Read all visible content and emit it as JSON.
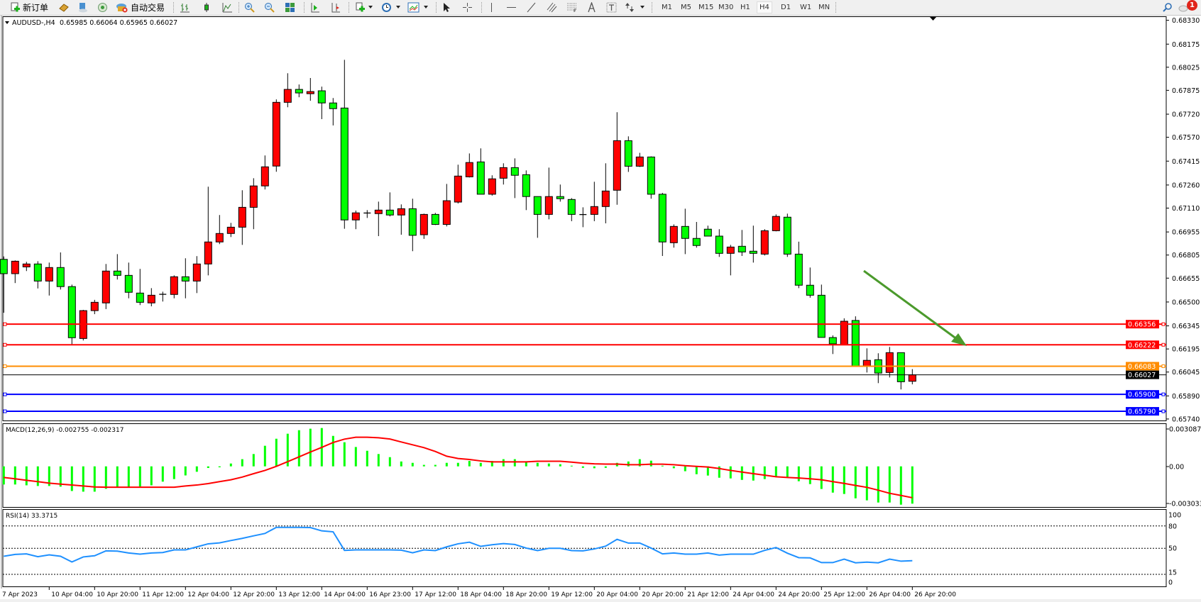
{
  "toolbar": {
    "new_order": "新订单",
    "auto_trading": "自动交易",
    "timeframes": [
      "M1",
      "M5",
      "M15",
      "M30",
      "H1",
      "H4",
      "D1",
      "W1",
      "MN"
    ],
    "active_timeframe": "H4",
    "notification_count": "1",
    "icons": [
      "new-order-icon",
      "market-watch-icon",
      "data-window-icon",
      "navigator-icon",
      "auto-trading-icon",
      "bar-chart-icon",
      "candlestick-icon",
      "line-chart-icon",
      "zoom-in-icon",
      "zoom-out-icon",
      "tile-windows-icon",
      "auto-scroll-icon",
      "chart-shift-icon",
      "indicators-icon",
      "periods-icon",
      "templates-icon",
      "cursor-icon",
      "crosshair-icon",
      "vertical-line-icon",
      "horizontal-line-icon",
      "trendline-icon",
      "equidistant-channel-icon",
      "fibonacci-icon",
      "text-icon",
      "text-label-icon",
      "arrows-icon",
      "search-icon",
      "notification-icon"
    ]
  },
  "chart": {
    "symbol": "AUDUSD-,H4",
    "ohlc": "0.65985 0.66064 0.65965 0.66027",
    "colors": {
      "bull": "#ff0000",
      "bear": "#00ff00",
      "arrow": "#4b9a2c"
    },
    "price_ticks": [
      "0.68330",
      "0.68175",
      "0.68025",
      "0.67875",
      "0.67720",
      "0.67570",
      "0.67415",
      "0.67260",
      "0.67110",
      "0.66955",
      "0.66805",
      "0.66655",
      "0.66500",
      "0.66345",
      "0.66195",
      "0.66045",
      "0.65890",
      "0.65740"
    ],
    "levels": [
      {
        "price": "0.66356",
        "color": "#ff0000"
      },
      {
        "price": "0.66222",
        "color": "#ff0000"
      },
      {
        "price": "0.66083",
        "color": "#ff8c00"
      },
      {
        "price": "0.66027",
        "color": "#000000"
      },
      {
        "price": "0.65900",
        "color": "#0000ff"
      },
      {
        "price": "0.65790",
        "color": "#0000ff"
      }
    ],
    "candles": [
      [
        0.66777,
        0.66796,
        0.6643,
        0.66684
      ],
      [
        0.66684,
        0.6677,
        0.66623,
        0.66765
      ],
      [
        0.66728,
        0.66761,
        0.66701,
        0.66747
      ],
      [
        0.66747,
        0.66765,
        0.66588,
        0.66636
      ],
      [
        0.66636,
        0.66756,
        0.66542,
        0.66724
      ],
      [
        0.66724,
        0.66822,
        0.66581,
        0.666
      ],
      [
        0.666,
        0.66613,
        0.66221,
        0.66268
      ],
      [
        0.66263,
        0.66449,
        0.6625,
        0.66444
      ],
      [
        0.66444,
        0.66514,
        0.66421,
        0.66498
      ],
      [
        0.66494,
        0.66747,
        0.66454,
        0.66701
      ],
      [
        0.66701,
        0.66811,
        0.66646,
        0.66673
      ],
      [
        0.66673,
        0.66756,
        0.66524,
        0.66563
      ],
      [
        0.66558,
        0.66715,
        0.6648,
        0.66498
      ],
      [
        0.66494,
        0.6659,
        0.66472,
        0.66544
      ],
      [
        0.66549,
        0.66567,
        0.66503,
        0.6655
      ],
      [
        0.66549,
        0.66673,
        0.66524,
        0.66664
      ],
      [
        0.66664,
        0.66784,
        0.66524,
        0.66636
      ],
      [
        0.66636,
        0.66798,
        0.66558,
        0.66747
      ],
      [
        0.66747,
        0.67249,
        0.66673,
        0.6689
      ],
      [
        0.6689,
        0.67065,
        0.66876,
        0.66945
      ],
      [
        0.66945,
        0.67014,
        0.66922,
        0.66986
      ],
      [
        0.66986,
        0.67226,
        0.66871,
        0.67115
      ],
      [
        0.67115,
        0.67304,
        0.66973,
        0.67254
      ],
      [
        0.67254,
        0.67452,
        0.67231,
        0.67378
      ],
      [
        0.67383,
        0.67816,
        0.67346,
        0.67797
      ],
      [
        0.67797,
        0.67986,
        0.67765,
        0.67881
      ],
      [
        0.67881,
        0.67913,
        0.6783,
        0.67858
      ],
      [
        0.67853,
        0.67955,
        0.67807,
        0.67867
      ],
      [
        0.67872,
        0.67899,
        0.67688,
        0.67793
      ],
      [
        0.67793,
        0.67825,
        0.67647,
        0.67756
      ],
      [
        0.6776,
        0.68073,
        0.66976,
        0.67033
      ],
      [
        0.67033,
        0.67094,
        0.66973,
        0.67079
      ],
      [
        0.67077,
        0.67097,
        0.67046,
        0.67078
      ],
      [
        0.67074,
        0.67152,
        0.66928,
        0.67097
      ],
      [
        0.67097,
        0.67212,
        0.67056,
        0.67065
      ],
      [
        0.67065,
        0.67134,
        0.66937,
        0.67106
      ],
      [
        0.67106,
        0.67171,
        0.6683,
        0.66933
      ],
      [
        0.66937,
        0.67074,
        0.6691,
        0.67069
      ],
      [
        0.67069,
        0.67079,
        0.67,
        0.67004
      ],
      [
        0.67004,
        0.67267,
        0.66991,
        0.67158
      ],
      [
        0.67149,
        0.67392,
        0.6714,
        0.67318
      ],
      [
        0.67313,
        0.67465,
        0.67309,
        0.67406
      ],
      [
        0.6741,
        0.67498,
        0.672,
        0.672
      ],
      [
        0.672,
        0.67323,
        0.67191,
        0.673
      ],
      [
        0.67304,
        0.67401,
        0.67263,
        0.67373
      ],
      [
        0.67373,
        0.67433,
        0.67175,
        0.67323
      ],
      [
        0.67327,
        0.67355,
        0.67097,
        0.67185
      ],
      [
        0.67185,
        0.67186,
        0.66917,
        0.67069
      ],
      [
        0.67069,
        0.67373,
        0.67037,
        0.67185
      ],
      [
        0.67185,
        0.67263,
        0.67152,
        0.67171
      ],
      [
        0.67166,
        0.67175,
        0.67025,
        0.67069
      ],
      [
        0.67067,
        0.67115,
        0.66986,
        0.67068
      ],
      [
        0.67069,
        0.67281,
        0.67025,
        0.6712
      ],
      [
        0.6712,
        0.67401,
        0.67011,
        0.67221
      ],
      [
        0.67226,
        0.67733,
        0.67132,
        0.67548
      ],
      [
        0.67548,
        0.67576,
        0.67345,
        0.67382
      ],
      [
        0.67382,
        0.67469,
        0.67377,
        0.67442
      ],
      [
        0.67442,
        0.67446,
        0.67171,
        0.672
      ],
      [
        0.672,
        0.67209,
        0.66799,
        0.6689
      ],
      [
        0.66885,
        0.67004,
        0.66853,
        0.66991
      ],
      [
        0.66991,
        0.67106,
        0.66811,
        0.66913
      ],
      [
        0.66913,
        0.6702,
        0.66853,
        0.66867
      ],
      [
        0.66973,
        0.66996,
        0.66927,
        0.66928
      ],
      [
        0.66928,
        0.66973,
        0.66793,
        0.66816
      ],
      [
        0.66816,
        0.66871,
        0.66673,
        0.66857
      ],
      [
        0.66862,
        0.66968,
        0.66799,
        0.66825
      ],
      [
        0.6683,
        0.66996,
        0.66756,
        0.66816
      ],
      [
        0.66811,
        0.66973,
        0.66802,
        0.66963
      ],
      [
        0.66963,
        0.67069,
        0.66959,
        0.67056
      ],
      [
        0.67051,
        0.67074,
        0.66793,
        0.66811
      ],
      [
        0.66811,
        0.66892,
        0.6659,
        0.66609
      ],
      [
        0.66609,
        0.66724,
        0.66528,
        0.66544
      ],
      [
        0.66544,
        0.66613,
        0.66269,
        0.6627
      ],
      [
        0.66269,
        0.66283,
        0.66162,
        0.66228
      ],
      [
        0.66223,
        0.66394,
        0.66222,
        0.66375
      ],
      [
        0.6638,
        0.66407,
        0.66082,
        0.66083
      ],
      [
        0.66084,
        0.66199,
        0.66042,
        0.66121
      ],
      [
        0.66125,
        0.66167,
        0.65973,
        0.66038
      ],
      [
        0.66042,
        0.66208,
        0.6601,
        0.66171
      ],
      [
        0.66171,
        0.66172,
        0.65932,
        0.65982
      ],
      [
        0.65985,
        0.66064,
        0.65965,
        0.66027
      ]
    ]
  },
  "macd": {
    "label": "MACD(12,26,9) -0.002755 -0.002317",
    "axis_labels": [
      "0.003087",
      "0.00",
      "-0.003033"
    ],
    "histogram": [
      -0.00134,
      -0.00134,
      -0.0014,
      -0.00145,
      -0.00145,
      -0.0015,
      -0.00182,
      -0.00187,
      -0.00187,
      -0.00166,
      -0.00152,
      -0.00152,
      -0.00149,
      -0.0014,
      -0.00113,
      -0.00094,
      -0.00067,
      -0.0004,
      -0.00012,
      -7e-05,
      0.00021,
      0.00053,
      0.00091,
      0.00152,
      0.00204,
      0.00241,
      0.00267,
      0.00278,
      0.00283,
      0.00225,
      0.00178,
      0.00143,
      0.00115,
      0.00091,
      0.00068,
      0.00036,
      0.00026,
      0.00011,
      0.00011,
      0.00026,
      0.00026,
      0.0004,
      0.00026,
      0.0004,
      0.00053,
      0.00053,
      0.00031,
      0.00026,
      0.00021,
      0.00016,
      5e-05,
      -0.00011,
      -0.00014,
      -0.00011,
      0.00026,
      0.00036,
      0.00053,
      0.00042,
      5e-05,
      -0.00014,
      -0.00036,
      -0.00058,
      -0.00068,
      -0.00084,
      -0.00089,
      -0.001,
      -0.00105,
      -0.00094,
      -0.00078,
      -0.00084,
      -0.0011,
      -0.00131,
      -0.00167,
      -0.00194,
      -0.00204,
      -0.00236,
      -0.00251,
      -0.00267,
      -0.00267,
      -0.00283,
      -0.002755
    ],
    "signal": [
      -0.00082,
      -0.00092,
      -0.00103,
      -0.00113,
      -0.00124,
      -0.00131,
      -0.00138,
      -0.00145,
      -0.00152,
      -0.00154,
      -0.00154,
      -0.00154,
      -0.00154,
      -0.00154,
      -0.00154,
      -0.00154,
      -0.00145,
      -0.00138,
      -0.00127,
      -0.00113,
      -0.00099,
      -0.00079,
      -0.00054,
      -0.0003,
      0.0,
      0.00035,
      0.0007,
      0.00106,
      0.0014,
      0.00176,
      0.00201,
      0.00215,
      0.00215,
      0.00211,
      0.00202,
      0.0018,
      0.00159,
      0.00138,
      0.0011,
      0.00075,
      0.00058,
      0.00051,
      0.0004,
      0.00033,
      0.00033,
      0.00033,
      0.00033,
      0.00038,
      0.00038,
      0.00038,
      0.00031,
      0.00023,
      0.00019,
      0.00017,
      0.00017,
      0.00012,
      0.00012,
      0.00016,
      0.00016,
      0.00012,
      5e-05,
      0.0,
      -5e-05,
      -0.00016,
      -0.0003,
      -0.00042,
      -0.00054,
      -0.00065,
      -0.00077,
      -0.00082,
      -0.00086,
      -0.00092,
      -0.00099,
      -0.00113,
      -0.00126,
      -0.00141,
      -0.00155,
      -0.00176,
      -0.00199,
      -0.00215,
      -0.002317
    ],
    "colors": {
      "histogram": "#00ff00",
      "signal": "#ff0000"
    }
  },
  "rsi": {
    "label": "RSI(14) 33.3715",
    "axis_labels": [
      "100",
      "80",
      "50",
      "15",
      "0"
    ],
    "levels": [
      80,
      50,
      15
    ],
    "values": [
      39.3,
      41.8,
      42.5,
      38.7,
      41.2,
      39.3,
      31.7,
      38.4,
      40.0,
      46.6,
      46.2,
      43.7,
      42.1,
      43.7,
      44.3,
      47.8,
      47.8,
      51.9,
      56.0,
      57.3,
      60.4,
      63.3,
      66.7,
      69.9,
      78.1,
      78.1,
      78.1,
      77.8,
      73.4,
      72.1,
      47.2,
      47.8,
      47.8,
      47.8,
      47.8,
      47.5,
      44.0,
      47.8,
      46.9,
      51.9,
      56.0,
      58.2,
      52.6,
      54.8,
      56.3,
      55.1,
      50.3,
      46.9,
      50.0,
      50.0,
      46.9,
      46.6,
      49.1,
      52.9,
      62.0,
      57.0,
      57.0,
      50.3,
      42.5,
      43.7,
      42.1,
      42.1,
      43.7,
      40.9,
      42.1,
      42.1,
      42.1,
      47.2,
      51.0,
      43.4,
      37.4,
      37.1,
      30.8,
      30.8,
      35.5,
      30.5,
      31.4,
      30.5,
      35.5,
      32.7,
      33.3715
    ],
    "color": "#1e90ff"
  },
  "time_axis": {
    "labels": [
      "7 Apr 2023",
      "10 Apr 04:00",
      "10 Apr 20:00",
      "11 Apr 12:00",
      "12 Apr 04:00",
      "12 Apr 20:00",
      "13 Apr 12:00",
      "14 Apr 04:00",
      "16 Apr 23:00",
      "17 Apr 12:00",
      "18 Apr 04:00",
      "18 Apr 20:00",
      "19 Apr 12:00",
      "20 Apr 04:00",
      "20 Apr 20:00",
      "21 Apr 12:00",
      "24 Apr 04:00",
      "24 Apr 20:00",
      "25 Apr 12:00",
      "26 Apr 04:00",
      "26 Apr 20:00"
    ]
  }
}
